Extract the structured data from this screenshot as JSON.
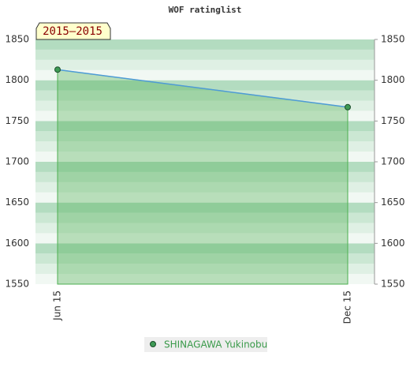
{
  "chart_data": {
    "type": "area",
    "title": "WOF ratinglist",
    "badge": "2015–2015",
    "categories": [
      "Jun 15",
      "Dec 15"
    ],
    "series": [
      {
        "name": "SHINAGAWA Yukinobu",
        "color": "#4e9bd6",
        "fill": "#4caf50",
        "marker_color": "#3e9a55",
        "values": [
          1813,
          1767
        ]
      }
    ],
    "ylim": [
      1550,
      1850
    ],
    "yticks": [
      1550,
      1600,
      1650,
      1700,
      1750,
      1800,
      1850
    ],
    "right_axis": true
  }
}
